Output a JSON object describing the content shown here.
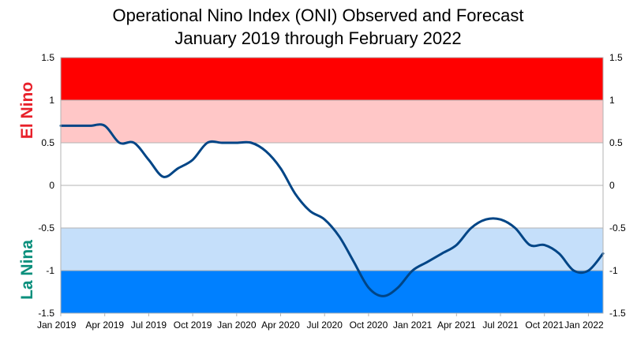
{
  "chart_data": {
    "type": "line",
    "title": "Operational Nino Index (ONI) Observed and Forecast",
    "subtitle": "January 2019 through February 2022",
    "ylim": [
      -1.5,
      1.5
    ],
    "yticks": [
      "1.5",
      "1",
      "0.5",
      "0",
      "-0.5",
      "-1",
      "-1.5"
    ],
    "ytick_values": [
      1.5,
      1,
      0.5,
      0,
      -0.5,
      -1,
      -1.5
    ],
    "xlabels": [
      "Jan 2019",
      "Apr 2019",
      "Jul 2019",
      "Oct 2019",
      "Jan 2020",
      "Apr 2020",
      "Jul 2020",
      "Oct 2020",
      "Jan 2021",
      "Apr 2021",
      "Jul 2021",
      "Oct 2021",
      "Jan 2022"
    ],
    "xlabel_month_index": [
      0,
      3,
      6,
      9,
      12,
      15,
      18,
      21,
      24,
      27,
      30,
      33,
      36
    ],
    "el_nino_label": "El Nino",
    "la_nina_label": "La Nina",
    "bands": [
      {
        "from": 1.0,
        "to": 1.5,
        "color": "#ff0000"
      },
      {
        "from": 0.5,
        "to": 1.0,
        "color": "#ffc7c7"
      },
      {
        "from": -1.0,
        "to": -0.5,
        "color": "#c5dffa"
      },
      {
        "from": -1.5,
        "to": -1.0,
        "color": "#0080ff"
      }
    ],
    "colors": {
      "line": "#004586",
      "el_nino_text": "#e8202a",
      "la_nina_text": "#0a8f7c",
      "grid": "#b3b3b3"
    },
    "series": [
      {
        "name": "ONI",
        "x": [
          0,
          1,
          2,
          3,
          4,
          5,
          6,
          7,
          8,
          9,
          10,
          11,
          12,
          13,
          14,
          15,
          16,
          17,
          18,
          19,
          20,
          21,
          22,
          23,
          24,
          25,
          26,
          27,
          28,
          29,
          30,
          31,
          32,
          33,
          34,
          35,
          36,
          37
        ],
        "values": [
          0.7,
          0.7,
          0.7,
          0.7,
          0.5,
          0.5,
          0.3,
          0.1,
          0.2,
          0.3,
          0.5,
          0.5,
          0.5,
          0.5,
          0.4,
          0.2,
          -0.1,
          -0.3,
          -0.4,
          -0.6,
          -0.9,
          -1.2,
          -1.3,
          -1.2,
          -1.0,
          -0.9,
          -0.8,
          -0.7,
          -0.5,
          -0.4,
          -0.4,
          -0.5,
          -0.7,
          -0.7,
          -0.8,
          -1.0,
          -1.0,
          -0.8
        ]
      }
    ]
  }
}
